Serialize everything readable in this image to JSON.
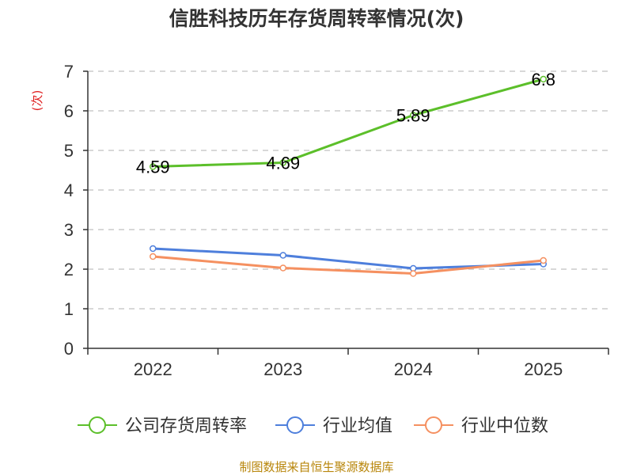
{
  "colors": {
    "company": "#5cbf2a",
    "average": "#4e7fdc",
    "median": "#f59060"
  },
  "chart_data": {
    "type": "line",
    "title": "信胜科技历年存货周转率情况(次)",
    "ylabel": "(次)",
    "xlabel": "",
    "ylim": [
      0,
      7
    ],
    "yticks": [
      0,
      1,
      2,
      3,
      4,
      5,
      6,
      7
    ],
    "grid": true,
    "legend_position": "bottom",
    "categories": [
      "2022",
      "2023",
      "2024",
      "2025"
    ],
    "series": [
      {
        "name": "公司存货周转率",
        "values": [
          4.59,
          4.69,
          5.89,
          6.8
        ],
        "labels": [
          "4.59",
          "4.69",
          "5.89",
          "6.8"
        ]
      },
      {
        "name": "行业均值",
        "values": [
          2.52,
          2.35,
          2.02,
          2.13
        ]
      },
      {
        "name": "行业中位数",
        "values": [
          2.32,
          2.03,
          1.89,
          2.22
        ]
      }
    ]
  },
  "source": "制图数据来自恒生聚源数据库"
}
